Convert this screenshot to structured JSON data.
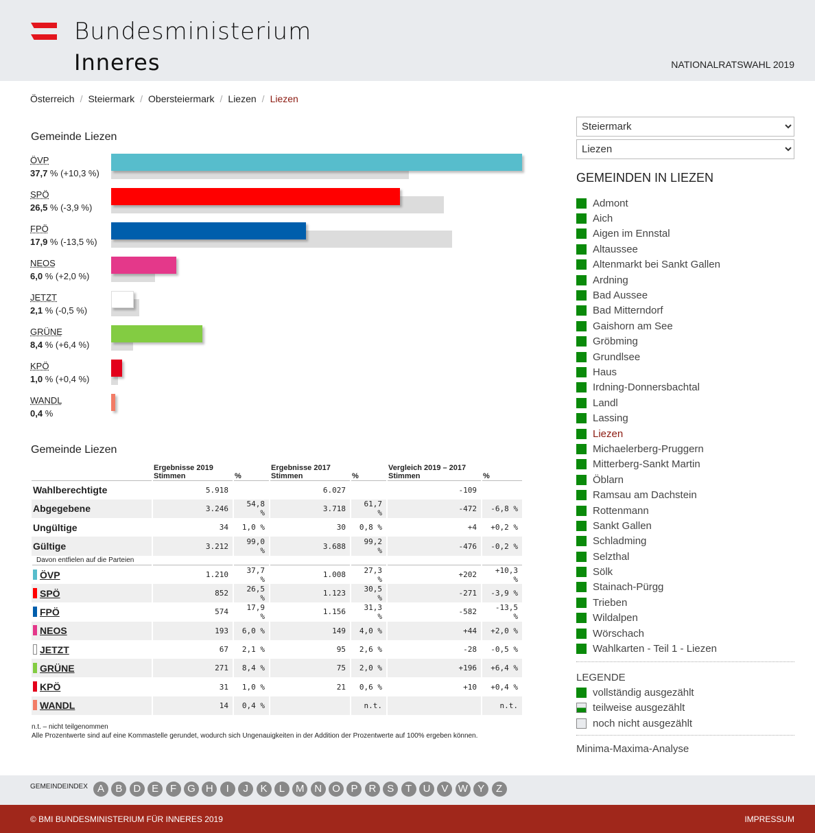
{
  "header": {
    "logo_line1": "Bundesministerium",
    "logo_line2": "Inneres",
    "election": "NATIONALRATSWAHL 2019"
  },
  "breadcrumb": [
    "Österreich",
    "Steiermark",
    "Obersteiermark",
    "Liezen",
    "Liezen"
  ],
  "chart_title": "Gemeinde Liezen",
  "chart_data": {
    "type": "bar",
    "title": "Gemeinde Liezen",
    "categories": [
      "ÖVP",
      "SPÖ",
      "FPÖ",
      "NEOS",
      "JETZT",
      "GRÜNE",
      "KPÖ",
      "WANDL"
    ],
    "series": [
      {
        "name": "2019",
        "values": [
          37.7,
          26.5,
          17.9,
          6.0,
          2.1,
          8.4,
          1.0,
          0.4
        ]
      },
      {
        "name": "2017",
        "values": [
          27.3,
          30.5,
          31.3,
          4.0,
          2.6,
          2.0,
          0.6,
          null
        ]
      }
    ],
    "labels": [
      "37,7 % (+10,3 %)",
      "26,5 % (-3,9 %)",
      "17,9 % (-13,5 %)",
      "6,0 % (+2,0 %)",
      "2,1 % (-0,5 %)",
      "8,4 % (+6,4 %)",
      "1,0 % (+0,4 %)",
      "0,4 %"
    ],
    "colors": [
      "#57bdcc",
      "#ff0000",
      "#005eac",
      "#e4388a",
      "#ffffff",
      "#83cc42",
      "#e3001b",
      "#f27c66"
    ],
    "xlim": [
      0,
      37.7
    ]
  },
  "table": {
    "title": "Gemeinde Liezen",
    "headers": {
      "g2019": "Ergebnisse 2019",
      "g2017": "Ergebnisse 2017",
      "gv": "Vergleich 2019 – 2017",
      "stimmen": "Stimmen",
      "pct": "%"
    },
    "summary": [
      [
        "Wahlberechtigte",
        "5.918",
        "",
        "6.027",
        "",
        "-109",
        ""
      ],
      [
        "Abgegebene",
        "3.246",
        "54,8 %",
        "3.718",
        "61,7 %",
        "-472",
        "-6,8 %"
      ],
      [
        "Ungültige",
        "34",
        "1,0 %",
        "30",
        "0,8 %",
        "+4",
        "+0,2 %"
      ],
      [
        "Gültige",
        "3.212",
        "99,0 %",
        "3.688",
        "99,2 %",
        "-476",
        "-0,2 %"
      ]
    ],
    "sub": "Davon entfielen auf die Parteien",
    "parties": [
      [
        "ÖVP",
        "1.210",
        "37,7 %",
        "1.008",
        "27,3 %",
        "+202",
        "+10,3 %"
      ],
      [
        "SPÖ",
        "852",
        "26,5 %",
        "1.123",
        "30,5 %",
        "-271",
        "-3,9 %"
      ],
      [
        "FPÖ",
        "574",
        "17,9 %",
        "1.156",
        "31,3 %",
        "-582",
        "-13,5 %"
      ],
      [
        "NEOS",
        "193",
        "6,0 %",
        "149",
        "4,0 %",
        "+44",
        "+2,0 %"
      ],
      [
        "JETZT",
        "67",
        "2,1 %",
        "95",
        "2,6 %",
        "-28",
        "-0,5 %"
      ],
      [
        "GRÜNE",
        "271",
        "8,4 %",
        "75",
        "2,0 %",
        "+196",
        "+6,4 %"
      ],
      [
        "KPÖ",
        "31",
        "1,0 %",
        "21",
        "0,6 %",
        "+10",
        "+0,4 %"
      ],
      [
        "WANDL",
        "14",
        "0,4 %",
        "",
        "n.t.",
        "",
        "n.t."
      ]
    ],
    "note1": "n.t. – nicht teilgenommen",
    "note2": "Alle Prozentwerte sind auf eine Kommastelle gerundet, wodurch sich Ungenauigkeiten in der Addition der Prozentwerte auf 100% ergeben können."
  },
  "side": {
    "select1": "Steiermark",
    "select2": "Liezen",
    "title": "GEMEINDEN IN LIEZEN",
    "gemeinden": [
      "Admont",
      "Aich",
      "Aigen im Ennstal",
      "Altaussee",
      "Altenmarkt bei Sankt Gallen",
      "Ardning",
      "Bad Aussee",
      "Bad Mitterndorf",
      "Gaishorn am See",
      "Gröbming",
      "Grundlsee",
      "Haus",
      "Irdning-Donnersbachtal",
      "Landl",
      "Lassing",
      "Liezen",
      "Michaelerberg-Pruggern",
      "Mitterberg-Sankt Martin",
      "Öblarn",
      "Ramsau am Dachstein",
      "Rottenmann",
      "Sankt Gallen",
      "Schladming",
      "Selzthal",
      "Sölk",
      "Stainach-Pürgg",
      "Trieben",
      "Wildalpen",
      "Wörschach",
      "Wahlkarten - Teil 1 - Liezen"
    ],
    "current": "Liezen",
    "legend_title": "LEGENDE",
    "legend": [
      "vollständig ausgezählt",
      "teilweise ausgezählt",
      "noch nicht ausgezählt"
    ],
    "minmax": "Minima-Maxima-Analyse"
  },
  "index": {
    "label": "GEMEINDEINDEX",
    "letters": [
      "A",
      "B",
      "D",
      "E",
      "F",
      "G",
      "H",
      "I",
      "J",
      "K",
      "L",
      "M",
      "N",
      "O",
      "P",
      "R",
      "S",
      "T",
      "U",
      "V",
      "W",
      "Y",
      "Z"
    ]
  },
  "footer": {
    "copyright": "© BMI BUNDESMINISTERIUM FÜR INNERES 2019",
    "impressum": "IMPRESSUM"
  }
}
